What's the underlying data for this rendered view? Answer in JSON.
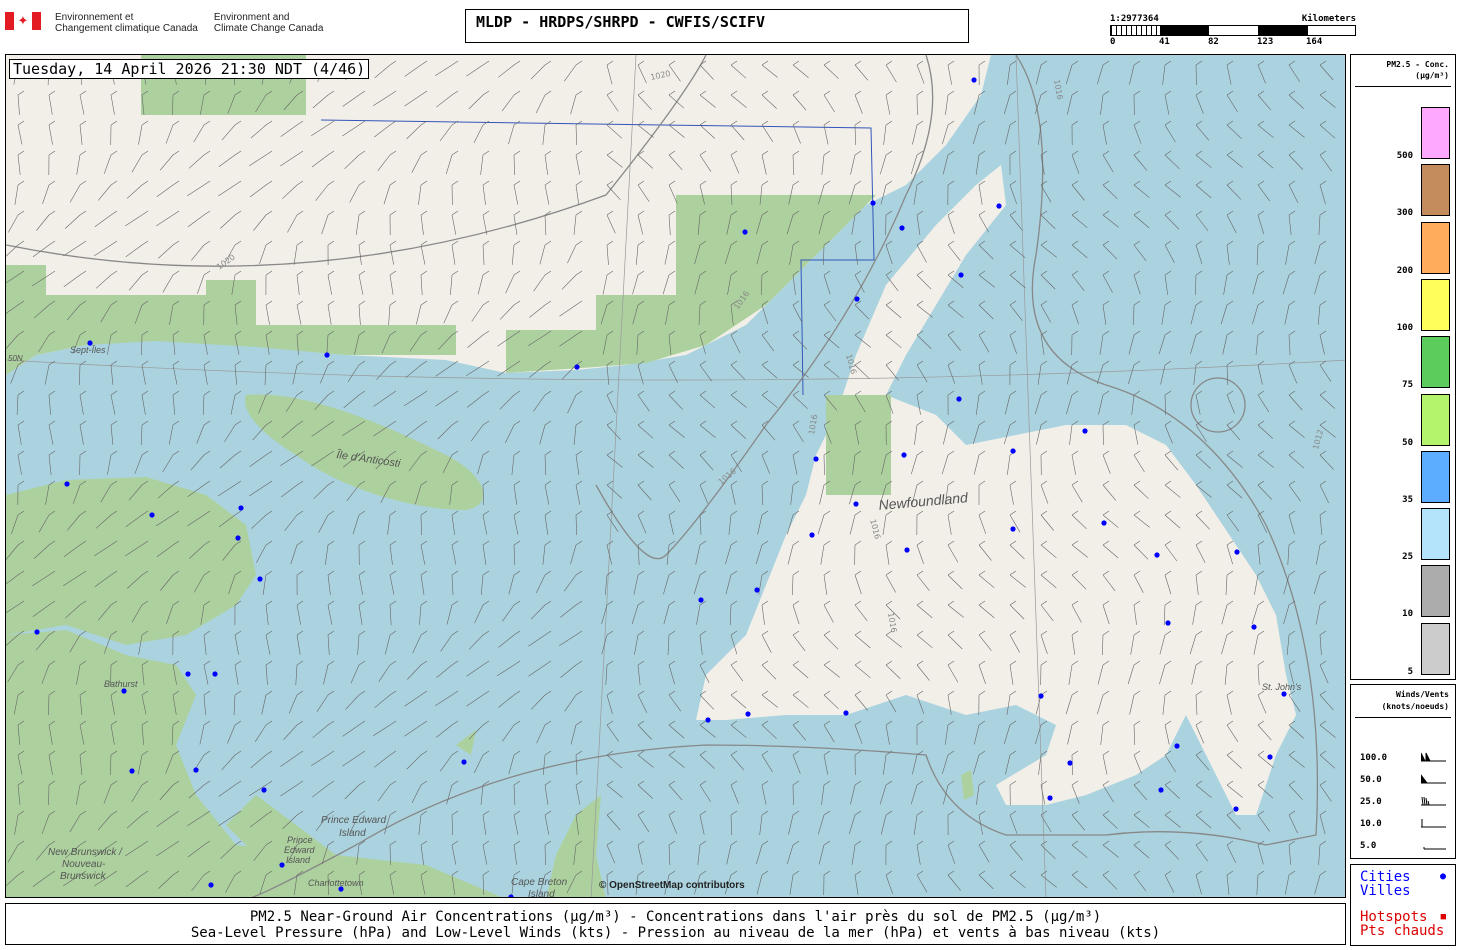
{
  "header": {
    "org_fr": [
      "Environnement et",
      "Changement climatique Canada"
    ],
    "org_en": [
      "Environment and",
      "Climate Change Canada"
    ],
    "title": "MLDP - HRDPS/SHRPD - CWFIS/SCIFV",
    "scale": {
      "ratio": "1:2977364",
      "unit": "Kilometers",
      "ticks": [
        "0",
        "41",
        "82",
        "123",
        "164"
      ]
    }
  },
  "map": {
    "datetime": "Tuesday, 14 April 2026 21:30 NDT (4/46)",
    "labels": {
      "sept_iles": "Sept-Îles",
      "anticosti": "Île d'Anticosti",
      "newfoundland": "Newfoundland",
      "bathurst": "Bathurst",
      "pei_fr": [
        "Prince Edward",
        "Island"
      ],
      "pei_en": [
        "Prince",
        "Edward",
        "Island"
      ],
      "charlottetown": "Charlottetown",
      "nb": [
        "New Brunswick /",
        "Nouveau-",
        "Brunswick"
      ],
      "cape_breton": [
        "Cape Breton",
        "Island"
      ],
      "st_johns": "St. John's",
      "lat": "50N",
      "attribution": "© OpenStreetMap contributors"
    },
    "isobars": [
      "1020",
      "1020",
      "1016",
      "1016",
      "1016",
      "1016",
      "1016",
      "1016",
      "1016",
      "1012"
    ]
  },
  "legend": {
    "title": "PM2.5 - Conc.",
    "unit": "(µg/m³)",
    "levels": [
      {
        "label": "500",
        "color": "#ffa8ff"
      },
      {
        "label": "300",
        "color": "#c48c5c"
      },
      {
        "label": "200",
        "color": "#ffac5c"
      },
      {
        "label": "100",
        "color": "#ffff5c"
      },
      {
        "label": "75",
        "color": "#5ccc5c"
      },
      {
        "label": "50",
        "color": "#b4f46c"
      },
      {
        "label": "35",
        "color": "#5cacff"
      },
      {
        "label": "25",
        "color": "#b4e4fc"
      },
      {
        "label": "10",
        "color": "#acacac"
      },
      {
        "label": "5",
        "color": "#cccccc"
      }
    ]
  },
  "winds": {
    "title": "Winds/Vents",
    "unit": "(knots/noeuds)",
    "speeds": [
      "100.0",
      "50.0",
      "25.0",
      "10.0",
      "5.0"
    ]
  },
  "keys": {
    "cities_en": "Cities",
    "cities_fr": "Villes",
    "cities_color": "#0000ff",
    "hotspots_en": "Hotspots",
    "hotspots_fr": "Pts chauds",
    "hotspots_color": "#dd0000"
  },
  "footer": {
    "line1": "PM2.5 Near-Ground Air Concentrations (µg/m³) - Concentrations dans l'air près du sol de PM2.5 (µg/m³)",
    "line2": "Sea-Level Pressure (hPa) and Low-Level Winds (kts) - Pression au niveau de la mer (hPa) et vents à bas niveau (kts)"
  }
}
